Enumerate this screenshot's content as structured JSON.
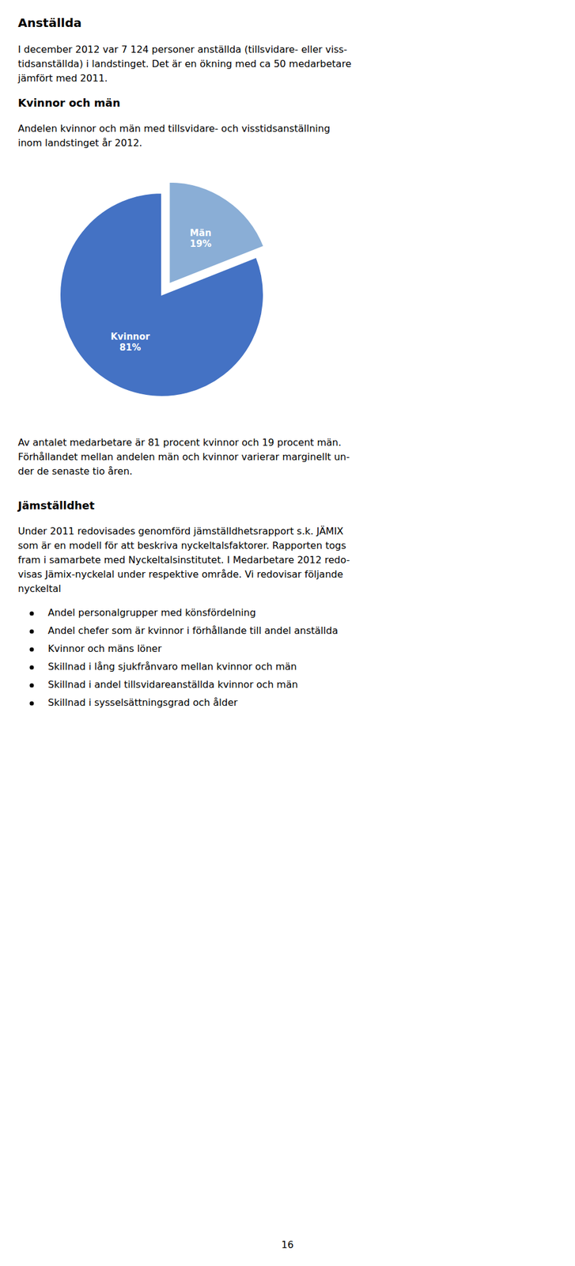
{
  "page_title": "Anställda",
  "para1_lines": [
    "I december 2012 var 7 124 personer anställda (tillsvidare- eller viss-",
    "tidsanställda) i landstinget. Det är en ökning med ca 50 medarbetare",
    "jämfört med 2011."
  ],
  "section_title": "Kvinnor och män",
  "para2_lines": [
    "Andelen kvinnor och män med tillsvidare- och visstidsanställning",
    "inom landstinget år 2012."
  ],
  "chart_data": {
    "type": "pie",
    "categories": [
      "Män",
      "Kvinnor"
    ],
    "values": [
      19,
      81
    ],
    "value_labels": [
      "19%",
      "81%"
    ],
    "data_labels": true,
    "colors": [
      "#8aaed6",
      "#4472c4"
    ]
  },
  "para3_lines": [
    "Av antalet medarbetare är 81 procent kvinnor och 19 procent män.",
    "Förhållandet mellan andelen män och kvinnor varierar marginellt un-",
    "der de senaste tio åren."
  ],
  "section2_title": "Jämställdhet",
  "para4_lines": [
    "Under 2011 redovisades genomförd jämställdhetsrapport s.k. JÄMIX",
    "som är en modell för att beskriva nyckeltalsfaktorer. Rapporten togs",
    "fram i samarbete med Nyckeltalsinstitutet. I Medarbetare 2012 redo-",
    "visas Jämix-nyckelal under respektive område. Vi redovisar följande",
    "nyckeltal"
  ],
  "bullet_items": [
    "Andel personalgrupper med könsfördelning",
    "Andel chefer som är kvinnor i förhållande till andel anställda",
    "Kvinnor och mäns löner",
    "Skillnad i lång sjukfrånvaro mellan kvinnor och män",
    "Skillnad i andel tillsvidareanställda kvinnor och män",
    "Skillnad i sysselsättningsgrad och ålder"
  ],
  "page_number": "16"
}
